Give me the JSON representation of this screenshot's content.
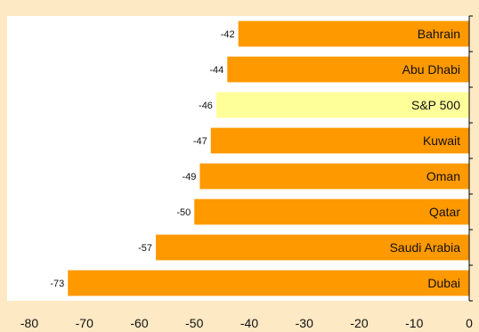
{
  "colors": {
    "background": "#fde9c4",
    "plot_area": "#ffffff",
    "bar": "#ff9900",
    "highlight_bar": "#ffff99",
    "axis": "#000000"
  },
  "chart_data": {
    "type": "bar",
    "orientation": "horizontal",
    "categories": [
      "Bahrain",
      "Abu Dhabi",
      "S&P 500",
      "Kuwait",
      "Oman",
      "Qatar",
      "Saudi Arabia",
      "Dubai"
    ],
    "values": [
      -42,
      -44,
      -46,
      -47,
      -49,
      -50,
      -57,
      -73
    ],
    "value_labels": [
      "-42",
      "-44",
      "-46",
      "-47",
      "-49",
      "-50",
      "-57",
      "-73"
    ],
    "highlight_category": "S&P 500",
    "xlim": [
      -80,
      0
    ],
    "xticks": [
      -80,
      -70,
      -60,
      -50,
      -40,
      -30,
      -20,
      -10,
      0
    ],
    "xtick_labels": [
      "-80",
      "-70",
      "-60",
      "-50",
      "-40",
      "-30",
      "-20",
      "-10",
      "0"
    ],
    "grid": false,
    "legend": "none",
    "title": "",
    "xlabel": "",
    "ylabel": ""
  }
}
